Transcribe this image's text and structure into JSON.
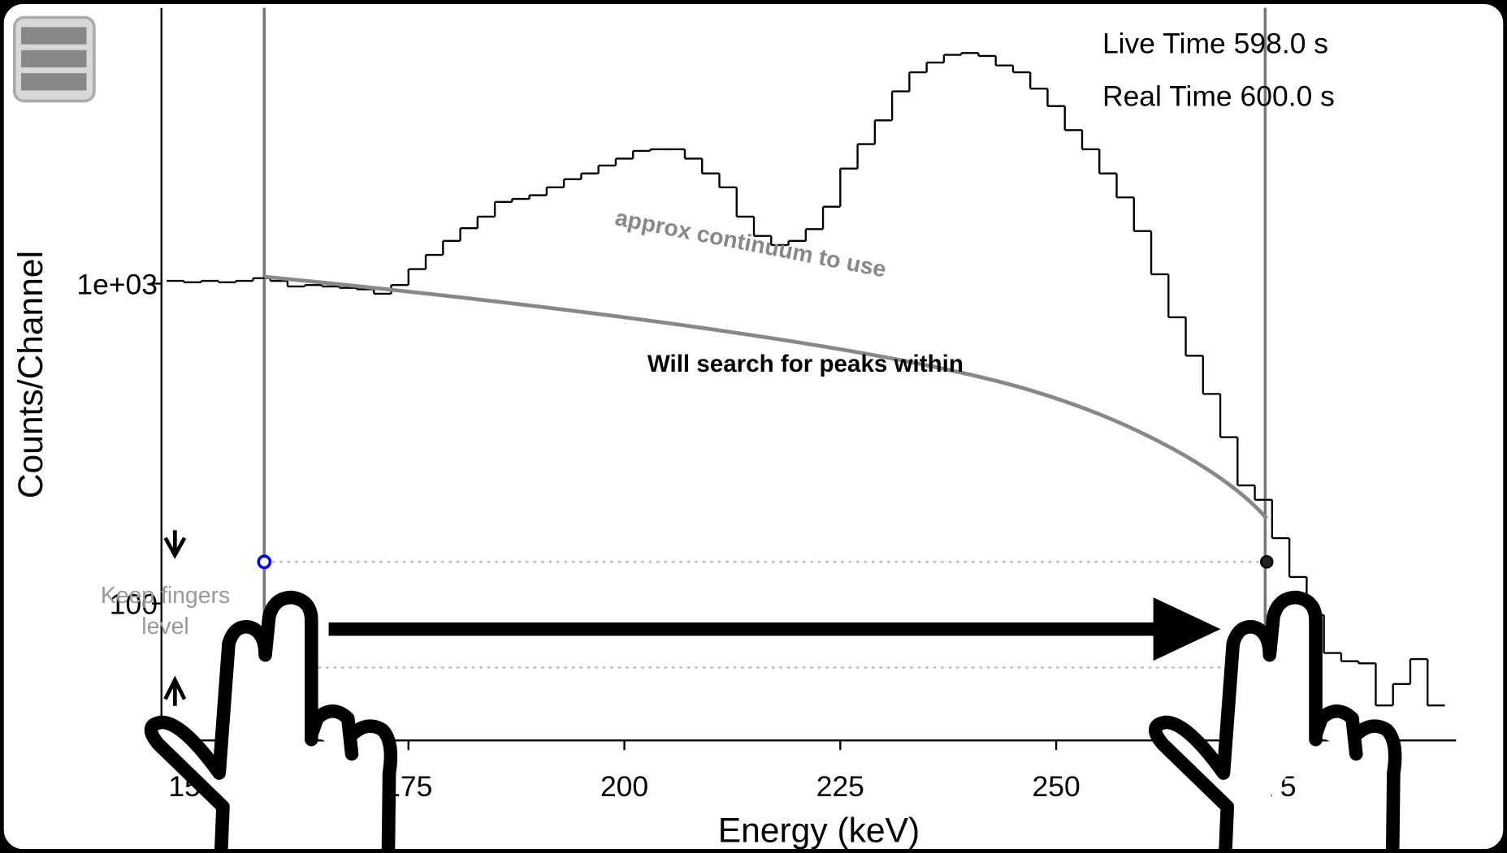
{
  "chart_data": {
    "type": "step",
    "xlabel": "Energy (keV)",
    "ylabel": "Counts/Channel",
    "xlim": [
      146.4,
      296.3
    ],
    "ylim": [
      37.3,
      7280
    ],
    "log_y": true,
    "xticks": [
      150,
      175,
      200,
      225,
      250,
      275
    ],
    "yticks": [
      100,
      {
        "value": 1000,
        "label": "1e+03"
      }
    ],
    "x": [
      148,
      150,
      152,
      154,
      156,
      158,
      160,
      162,
      164,
      166,
      168,
      170,
      172,
      174,
      176,
      178,
      180,
      182,
      184,
      186,
      188,
      190,
      192,
      194,
      196,
      198,
      200,
      202,
      204,
      206,
      208,
      210,
      212,
      214,
      216,
      218,
      220,
      222,
      224,
      226,
      228,
      230,
      232,
      234,
      236,
      238,
      240,
      242,
      244,
      246,
      248,
      250,
      252,
      254,
      256,
      258,
      260,
      262,
      264,
      266,
      268,
      270,
      272,
      274,
      276,
      278,
      280,
      282,
      284,
      286,
      288,
      290,
      292,
      294
    ],
    "values": [
      1020,
      1010,
      1020,
      1010,
      1020,
      1040,
      1020,
      980,
      990,
      980,
      970,
      960,
      930,
      990,
      1110,
      1230,
      1360,
      1490,
      1620,
      1800,
      1840,
      1890,
      2000,
      2120,
      2210,
      2340,
      2460,
      2600,
      2630,
      2630,
      2460,
      2210,
      2000,
      1620,
      1410,
      1320,
      1360,
      1480,
      1740,
      2290,
      2730,
      3240,
      3990,
      4580,
      4910,
      5190,
      5260,
      5150,
      4810,
      4580,
      4070,
      3590,
      3020,
      2630,
      2210,
      1860,
      1460,
      1070,
      785,
      595,
      452,
      331,
      234,
      211,
      160,
      121,
      92,
      70,
      66,
      65,
      48,
      56,
      67,
      48
    ],
    "color": "#000000",
    "roi": [
      158.3,
      274.2
    ],
    "live_time": "Live Time 598.0 s",
    "real_time": "Real Time 600.0 s",
    "annotations": [
      "approx continuum to use",
      "Will search for peaks within",
      "Keep fingers",
      "level"
    ]
  }
}
